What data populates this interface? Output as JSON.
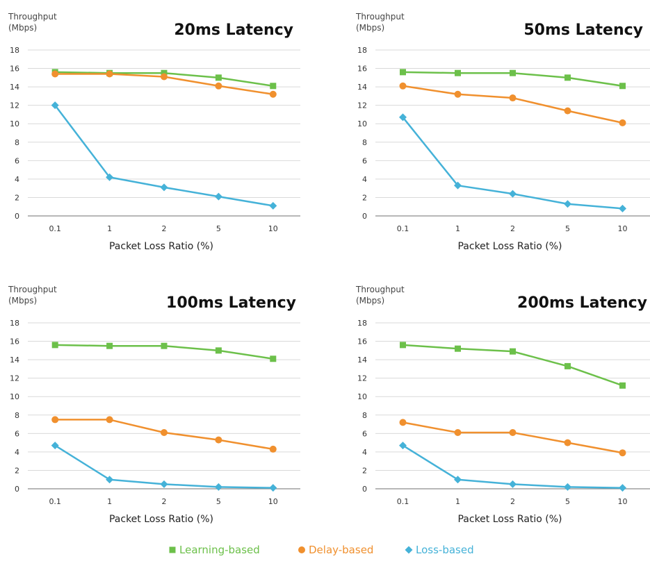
{
  "chart_data": [
    {
      "type": "line",
      "title": "20ms Latency",
      "xlabel": "Packet Loss Ratio (%)",
      "ylabel": [
        "Throughput",
        "(Mbps)"
      ],
      "categories": [
        "0.1",
        "1",
        "2",
        "5",
        "10"
      ],
      "ylim": [
        0,
        18
      ],
      "yticks": [
        0,
        2,
        4,
        6,
        8,
        10,
        12,
        14,
        16,
        18
      ],
      "grid": true,
      "series": [
        {
          "name": "Learning-based",
          "color": "#6cc04a",
          "marker": "square",
          "values": [
            15.6,
            15.5,
            15.5,
            15.0,
            14.1
          ]
        },
        {
          "name": "Delay-based",
          "color": "#f0902e",
          "marker": "circle",
          "values": [
            15.4,
            15.4,
            15.1,
            14.1,
            13.2
          ]
        },
        {
          "name": "Loss-based",
          "color": "#45b2d8",
          "marker": "diamond",
          "values": [
            12.0,
            4.2,
            3.1,
            2.1,
            1.1
          ]
        }
      ]
    },
    {
      "type": "line",
      "title": "50ms Latency",
      "xlabel": "Packet Loss Ratio (%)",
      "ylabel": [
        "Throughput",
        "(Mbps)"
      ],
      "categories": [
        "0.1",
        "1",
        "2",
        "5",
        "10"
      ],
      "ylim": [
        0,
        18
      ],
      "yticks": [
        0,
        2,
        4,
        6,
        8,
        10,
        12,
        14,
        16,
        18
      ],
      "grid": true,
      "series": [
        {
          "name": "Learning-based",
          "color": "#6cc04a",
          "marker": "square",
          "values": [
            15.6,
            15.5,
            15.5,
            15.0,
            14.1
          ]
        },
        {
          "name": "Delay-based",
          "color": "#f0902e",
          "marker": "circle",
          "values": [
            14.1,
            13.2,
            12.8,
            11.4,
            10.1
          ]
        },
        {
          "name": "Loss-based",
          "color": "#45b2d8",
          "marker": "diamond",
          "values": [
            10.7,
            3.3,
            2.4,
            1.3,
            0.8
          ]
        }
      ]
    },
    {
      "type": "line",
      "title": "100ms Latency",
      "xlabel": "Packet Loss Ratio (%)",
      "ylabel": [
        "Throughput",
        "(Mbps)"
      ],
      "categories": [
        "0.1",
        "1",
        "2",
        "5",
        "10"
      ],
      "ylim": [
        0,
        18
      ],
      "yticks": [
        0,
        2,
        4,
        6,
        8,
        10,
        12,
        14,
        16,
        18
      ],
      "grid": true,
      "series": [
        {
          "name": "Learning-based",
          "color": "#6cc04a",
          "marker": "square",
          "values": [
            15.6,
            15.5,
            15.5,
            15.0,
            14.1
          ]
        },
        {
          "name": "Delay-based",
          "color": "#f0902e",
          "marker": "circle",
          "values": [
            7.5,
            7.5,
            6.1,
            5.3,
            4.3
          ]
        },
        {
          "name": "Loss-based",
          "color": "#45b2d8",
          "marker": "diamond",
          "values": [
            4.7,
            1.0,
            0.5,
            0.2,
            0.1
          ]
        }
      ]
    },
    {
      "type": "line",
      "title": "200ms Latency",
      "xlabel": "Packet Loss Ratio (%)",
      "ylabel": [
        "Throughput",
        "(Mbps)"
      ],
      "categories": [
        "0.1",
        "1",
        "2",
        "5",
        "10"
      ],
      "ylim": [
        0,
        18
      ],
      "yticks": [
        0,
        2,
        4,
        6,
        8,
        10,
        12,
        14,
        16,
        18
      ],
      "grid": true,
      "series": [
        {
          "name": "Learning-based",
          "color": "#6cc04a",
          "marker": "square",
          "values": [
            15.6,
            15.2,
            14.9,
            13.3,
            11.2
          ]
        },
        {
          "name": "Delay-based",
          "color": "#f0902e",
          "marker": "circle",
          "values": [
            7.2,
            6.1,
            6.1,
            5.0,
            3.9
          ]
        },
        {
          "name": "Loss-based",
          "color": "#45b2d8",
          "marker": "diamond",
          "values": [
            4.7,
            1.0,
            0.5,
            0.2,
            0.1
          ]
        }
      ]
    }
  ],
  "legend": {
    "placement": "bottom-center",
    "items": [
      {
        "label": "Learning-based",
        "color": "#6cc04a",
        "marker": "square"
      },
      {
        "label": "Delay-based",
        "color": "#f0902e",
        "marker": "circle"
      },
      {
        "label": "Loss-based",
        "color": "#45b2d8",
        "marker": "diamond"
      }
    ]
  },
  "colors": {
    "grid": "#d9d9d9",
    "axis": "#8c8c8c"
  }
}
